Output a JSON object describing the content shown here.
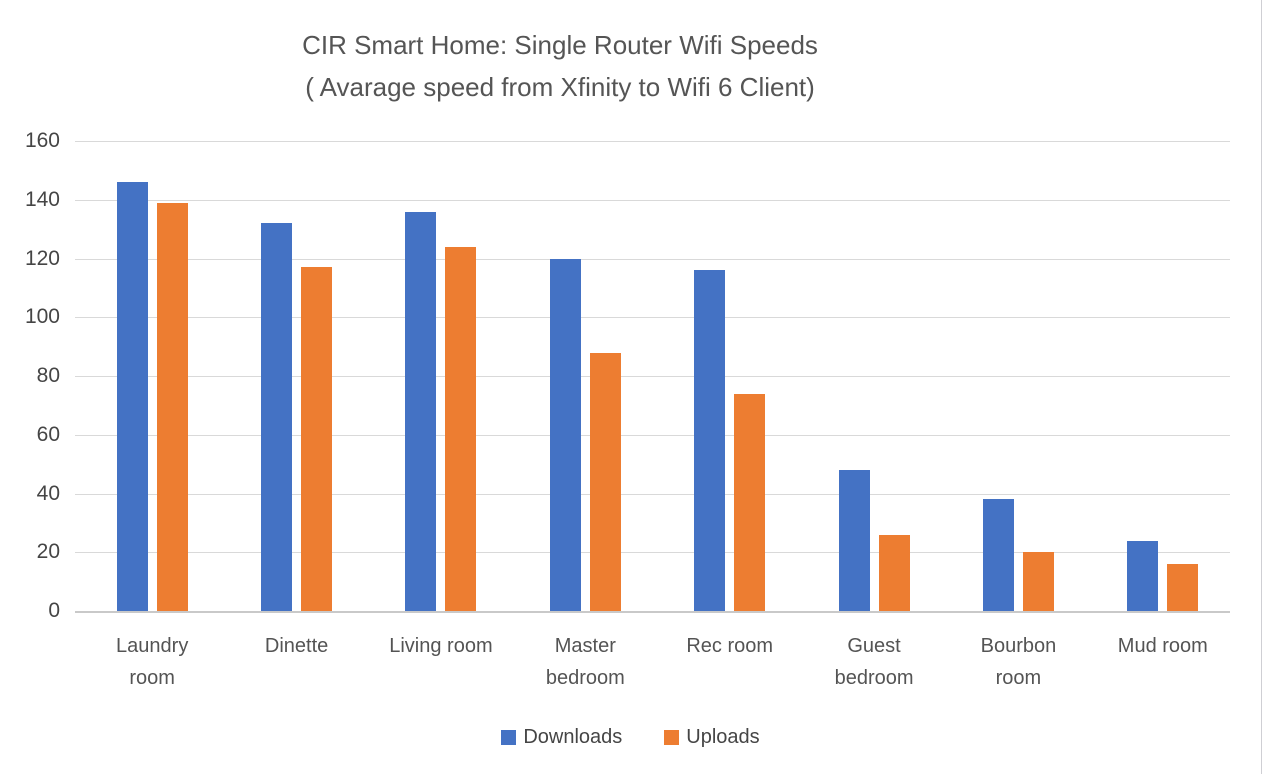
{
  "chart_data": {
    "type": "bar",
    "title": "CIR Smart Home: Single Router Wifi Speeds ( Avarage speed from Xfinity to Wifi 6 Client)",
    "title_line1": "CIR Smart Home: Single Router Wifi Speeds",
    "title_line2": "( Avarage speed from Xfinity to Wifi 6 Client)",
    "categories": [
      "Laundry room",
      "Dinette",
      "Living room",
      "Master bedroom",
      "Rec room",
      "Guest bedroom",
      "Bourbon room",
      "Mud room"
    ],
    "series": [
      {
        "name": "Downloads",
        "color": "#4472C4",
        "values": [
          146,
          132,
          136,
          120,
          116,
          48,
          38,
          24
        ]
      },
      {
        "name": "Uploads",
        "color": "#ED7D31",
        "values": [
          139,
          117,
          124,
          88,
          74,
          26,
          20,
          16
        ]
      }
    ],
    "xlabel": "",
    "ylabel": "",
    "ylim": [
      0,
      160
    ],
    "ytick_step": 20,
    "ytick_labels": [
      "0",
      "20",
      "40",
      "60",
      "80",
      "100",
      "120",
      "140",
      "160"
    ],
    "grid": true,
    "gridline_color": "#d9d9d9",
    "legend_position": "bottom",
    "legend_swatch_shape": "square"
  }
}
